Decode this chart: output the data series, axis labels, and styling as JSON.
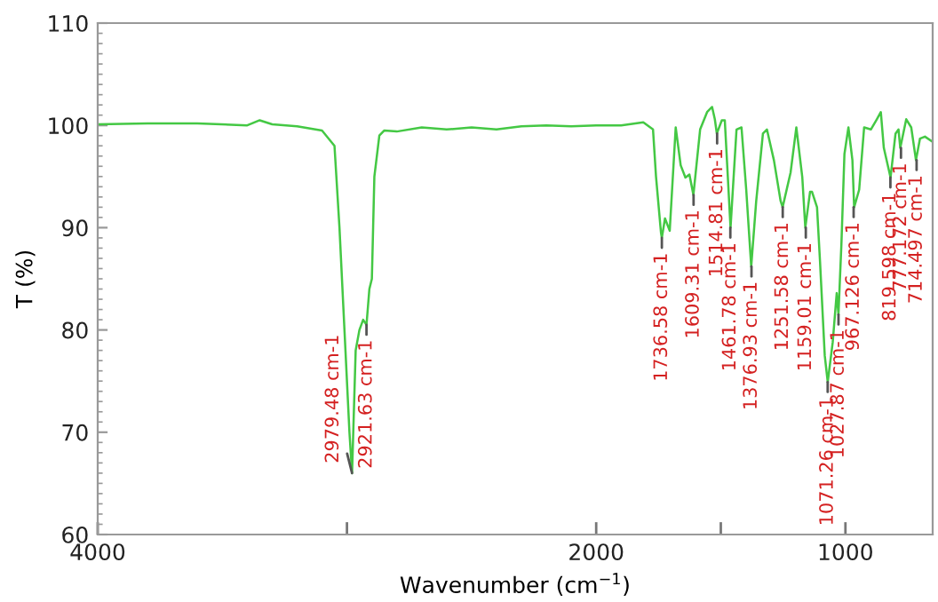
{
  "chart_data": {
    "type": "line",
    "xlabel": "Wavenumber (cm$^{−1}$)",
    "ylabel": "T (%)",
    "xlim": [
      4000,
      650
    ],
    "xticks": [
      4000,
      {
        "value": 3000,
        "label": null
      },
      2000,
      {
        "value": 1500,
        "label": null
      },
      1000
    ],
    "ylim": [
      60,
      110
    ],
    "yticks": [
      60,
      70,
      80,
      90,
      100,
      110
    ],
    "grid": false,
    "legend": false,
    "series": [
      {
        "color": "#44c844",
        "x": [
          4000,
          3800,
          3600,
          3400,
          3350,
          3300,
          3200,
          3100,
          3050,
          3030,
          3010,
          2990,
          2979.48,
          2965,
          2950,
          2935,
          2921.63,
          2910,
          2900,
          2890,
          2870,
          2850,
          2800,
          2700,
          2600,
          2500,
          2400,
          2300,
          2200,
          2100,
          2000,
          1900,
          1811,
          1772,
          1760,
          1740,
          1736.58,
          1724,
          1705,
          1681,
          1661,
          1642,
          1626,
          1610,
          1583,
          1555,
          1535,
          1524,
          1516,
          1496,
          1484,
          1461,
          1437,
          1417,
          1398,
          1378,
          1358,
          1331,
          1315,
          1287,
          1260,
          1252,
          1220,
          1197,
          1173,
          1161,
          1142,
          1134,
          1114,
          1102,
          1083,
          1071,
          1051,
          1035,
          1028,
          1016,
          1004,
          988,
          972,
          965,
          945,
          925,
          898,
          874,
          858,
          846,
          819,
          799,
          787,
          780,
          756,
          736,
          717,
          701,
          681,
          650
        ],
        "values": [
          100.1,
          100.2,
          100.2,
          100.0,
          100.5,
          100.1,
          99.9,
          99.5,
          98,
          90,
          80,
          70,
          66,
          78,
          80,
          81,
          80.5,
          84,
          85,
          95,
          99,
          99.5,
          99.4,
          99.8,
          99.6,
          99.8,
          99.6,
          99.9,
          100,
          99.9,
          100,
          100,
          100.3,
          99.6,
          95,
          89.5,
          89,
          90.9,
          89.7,
          99.8,
          96.1,
          94.9,
          95.2,
          93.2,
          99.6,
          101.3,
          101.8,
          100.6,
          99.2,
          100.5,
          100.5,
          90,
          99.6,
          99.8,
          93.7,
          86.2,
          92.6,
          99.2,
          99.6,
          96.6,
          92.6,
          92,
          95.4,
          99.8,
          94.9,
          90,
          93.5,
          93.5,
          92,
          86.7,
          77.5,
          74.9,
          78.8,
          83.6,
          81.5,
          88.5,
          97.2,
          99.8,
          96.6,
          92,
          93.7,
          99.8,
          99.6,
          100.6,
          101.3,
          97.8,
          94.9,
          99.2,
          99.6,
          97.8,
          100.6,
          99.8,
          96.6,
          98.7,
          98.9,
          98.4
        ]
      }
    ],
    "annotations": [
      {
        "text": "2979.48 cm-1",
        "x": 2979.48,
        "y": 66
      },
      {
        "text": "2921.63 cm-1",
        "x": 2921.63,
        "y": 80.5
      },
      {
        "text": "1736.58 cm-1",
        "x": 1736.58,
        "y": 89
      },
      {
        "text": "1609.31 cm-1",
        "x": 1609.31,
        "y": 93.2
      },
      {
        "text": "1514.81 cm-1",
        "x": 1514.81,
        "y": 99.2
      },
      {
        "text": "1461.78 cm-1",
        "x": 1461.78,
        "y": 90
      },
      {
        "text": "1376.93 cm-1",
        "x": 1376.93,
        "y": 86.2
      },
      {
        "text": "1251.58 cm-1",
        "x": 1251.58,
        "y": 92
      },
      {
        "text": "1159.01 cm-1",
        "x": 1159.01,
        "y": 90
      },
      {
        "text": "1071.26 cm-1",
        "x": 1071.26,
        "y": 74.9
      },
      {
        "text": "1027.87 cm-1",
        "x": 1027.87,
        "y": 81.5
      },
      {
        "text": "967.126 cm-1",
        "x": 967.126,
        "y": 92
      },
      {
        "text": "819.598 cm-1",
        "x": 819.598,
        "y": 94.9
      },
      {
        "text": "777.172 cm-1",
        "x": 777.172,
        "y": 97.8
      },
      {
        "text": "714.497 cm-1",
        "x": 714.497,
        "y": 96.6
      }
    ]
  }
}
